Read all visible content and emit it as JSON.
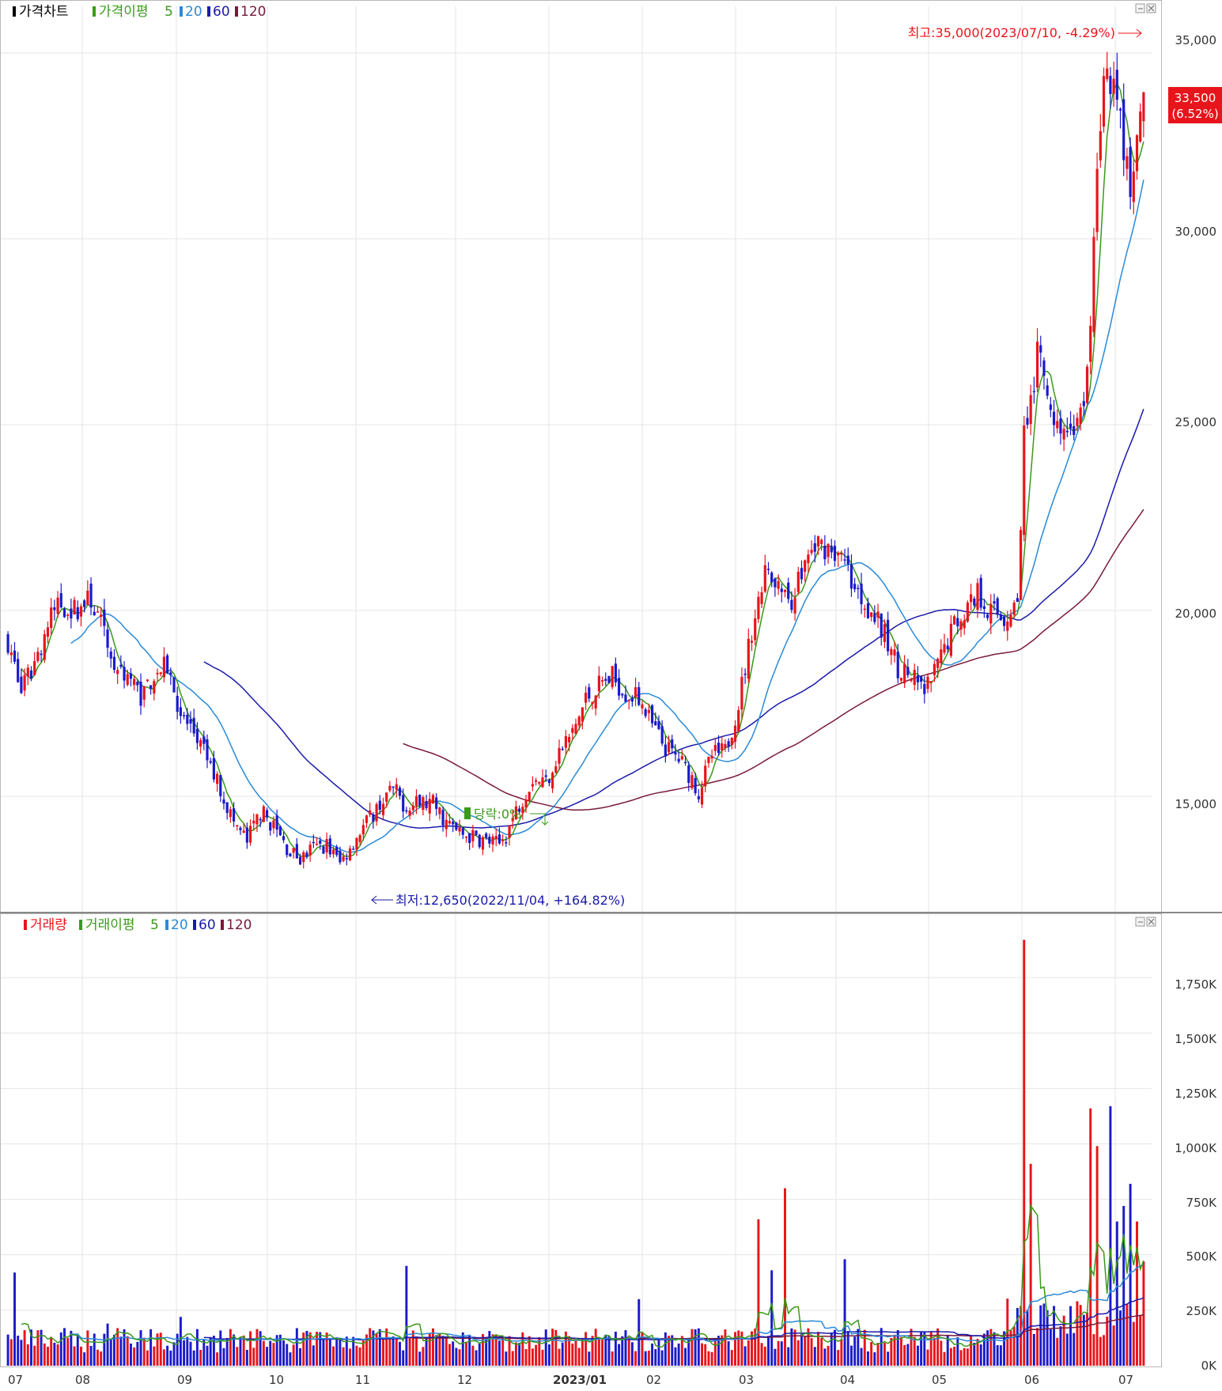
{
  "price_panel": {
    "legend": {
      "title": "가격차트",
      "ma_label": "가격이평",
      "periods": [
        "5",
        "20",
        "60",
        "120"
      ]
    },
    "high_annotation": "최고:35,000(2023/07/10, -4.29%)",
    "low_annotation": "최저:12,650(2022/11/04, +164.82%)",
    "drop_annotation": "당락:0%",
    "current_price": "33,500",
    "current_change": "(6.52%)",
    "y_ticks": [
      "35,000",
      "30,000",
      "25,000",
      "20,000",
      "15,000"
    ]
  },
  "volume_panel": {
    "legend": {
      "title": "거래량",
      "ma_label": "거래이평",
      "periods": [
        "5",
        "20",
        "60",
        "120"
      ]
    },
    "y_ticks": [
      "1,750K",
      "1,500K",
      "1,250K",
      "1,000K",
      "750K",
      "500K",
      "250K",
      "0K"
    ]
  },
  "x_ticks": [
    "07",
    "08",
    "09",
    "10",
    "11",
    "12",
    "2023/01",
    "02",
    "03",
    "04",
    "05",
    "06",
    "07"
  ],
  "colors": {
    "up": "#e8141b",
    "down": "#1a1acc",
    "ma5": "#3a9a1a",
    "ma20": "#2a8ad8",
    "ma60": "#1a1aaa",
    "ma120": "#7a1a3a",
    "grid": "#e4e4e4"
  },
  "chart_data": {
    "type": "candlestick",
    "y_range": [
      12000,
      36000
    ],
    "volume_range": [
      0,
      1950000
    ],
    "price_path": [
      [
        0,
        19200
      ],
      [
        4,
        17800
      ],
      [
        8,
        18600
      ],
      [
        12,
        19600
      ],
      [
        15,
        20200
      ],
      [
        20,
        20000
      ],
      [
        25,
        20300
      ],
      [
        28,
        19600
      ],
      [
        32,
        18500
      ],
      [
        36,
        18300
      ],
      [
        40,
        17700
      ],
      [
        44,
        18300
      ],
      [
        48,
        18500
      ],
      [
        52,
        17200
      ],
      [
        56,
        16700
      ],
      [
        60,
        16000
      ],
      [
        64,
        15200
      ],
      [
        68,
        14300
      ],
      [
        72,
        13800
      ],
      [
        76,
        14600
      ],
      [
        80,
        14200
      ],
      [
        84,
        13600
      ],
      [
        88,
        13300
      ],
      [
        92,
        13600
      ],
      [
        96,
        13700
      ],
      [
        100,
        13200
      ],
      [
        104,
        13800
      ],
      [
        108,
        14300
      ],
      [
        112,
        14800
      ],
      [
        116,
        15200
      ],
      [
        120,
        14700
      ],
      [
        124,
        14800
      ],
      [
        128,
        14800
      ],
      [
        132,
        14300
      ],
      [
        136,
        14000
      ],
      [
        140,
        13900
      ],
      [
        144,
        13800
      ],
      [
        148,
        13700
      ],
      [
        150,
        14000
      ],
      [
        154,
        14800
      ],
      [
        158,
        15500
      ],
      [
        162,
        15400
      ],
      [
        166,
        16200
      ],
      [
        170,
        16700
      ],
      [
        174,
        17600
      ],
      [
        178,
        18000
      ],
      [
        182,
        18200
      ],
      [
        186,
        17800
      ],
      [
        190,
        17600
      ],
      [
        194,
        16900
      ],
      [
        198,
        16300
      ],
      [
        202,
        16000
      ],
      [
        206,
        15500
      ],
      [
        208,
        15100
      ],
      [
        212,
        16100
      ],
      [
        216,
        16200
      ],
      [
        220,
        17500
      ],
      [
        224,
        19500
      ],
      [
        228,
        21000
      ],
      [
        232,
        20500
      ],
      [
        236,
        20300
      ],
      [
        240,
        21300
      ],
      [
        244,
        21800
      ],
      [
        248,
        21700
      ],
      [
        252,
        21200
      ],
      [
        256,
        20500
      ],
      [
        260,
        20000
      ],
      [
        264,
        19300
      ],
      [
        268,
        18500
      ],
      [
        272,
        18200
      ],
      [
        276,
        17800
      ],
      [
        280,
        18500
      ],
      [
        284,
        19500
      ],
      [
        288,
        20000
      ],
      [
        292,
        20500
      ],
      [
        296,
        20000
      ],
      [
        300,
        19800
      ],
      [
        304,
        20200
      ],
      [
        306,
        24800
      ],
      [
        310,
        26800
      ],
      [
        314,
        25600
      ],
      [
        318,
        24800
      ],
      [
        322,
        25000
      ],
      [
        324,
        25400
      ],
      [
        326,
        28000
      ],
      [
        328,
        31500
      ],
      [
        330,
        34000
      ],
      [
        332,
        34400
      ],
      [
        335,
        33000
      ],
      [
        338,
        31300
      ],
      [
        340,
        32300
      ],
      [
        342,
        33500
      ]
    ],
    "series": [
      {
        "name": "5",
        "kind": "moving-average"
      },
      {
        "name": "20",
        "kind": "moving-average"
      },
      {
        "name": "60",
        "kind": "moving-average"
      },
      {
        "name": "120",
        "kind": "moving-average"
      }
    ],
    "volume_spikes": [
      [
        2,
        420000
      ],
      [
        30,
        190000
      ],
      [
        52,
        220000
      ],
      [
        120,
        450000
      ],
      [
        190,
        300000
      ],
      [
        226,
        660000
      ],
      [
        230,
        430000
      ],
      [
        234,
        800000
      ],
      [
        252,
        480000
      ],
      [
        306,
        1920000
      ],
      [
        308,
        910000
      ],
      [
        312,
        280000
      ],
      [
        326,
        1160000
      ],
      [
        328,
        990000
      ],
      [
        332,
        1170000
      ],
      [
        334,
        650000
      ],
      [
        336,
        720000
      ],
      [
        338,
        820000
      ],
      [
        340,
        650000
      ],
      [
        342,
        470000
      ]
    ],
    "annotations": [
      {
        "text": "최고:35,000(2023/07/10, -4.29%)",
        "value": 35000,
        "date": "2023/07/10"
      },
      {
        "text": "최저:12,650(2022/11/04, +164.82%)",
        "value": 12650,
        "date": "2022/11/04"
      }
    ]
  }
}
